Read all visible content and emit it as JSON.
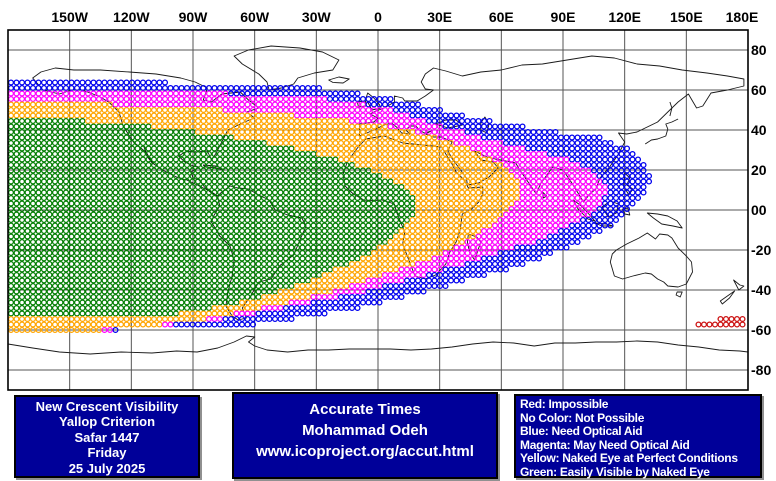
{
  "title": "New Crescent Visibility Map",
  "colors": {
    "panel_bg": "#000099",
    "panel_text": "#ffffff",
    "grid": "#555555",
    "frame": "#000000",
    "coast": "#1a1a1a",
    "zone_blue": "#0000ee",
    "zone_magenta": "#ff00ff",
    "zone_yellow": "#ffa500",
    "zone_green": "#007d00",
    "zone_red": "#cc1111"
  },
  "map": {
    "lon_ticks": [
      {
        "label": "150W",
        "lon": -150
      },
      {
        "label": "120W",
        "lon": -120
      },
      {
        "label": "90W",
        "lon": -90
      },
      {
        "label": "60W",
        "lon": -60
      },
      {
        "label": "30W",
        "lon": -30
      },
      {
        "label": "0",
        "lon": 0
      },
      {
        "label": "30E",
        "lon": 30
      },
      {
        "label": "60E",
        "lon": 60
      },
      {
        "label": "90E",
        "lon": 90
      },
      {
        "label": "120E",
        "lon": 120
      },
      {
        "label": "150E",
        "lon": 150
      },
      {
        "label": "180E",
        "lon": 180
      }
    ],
    "lat_ticks": [
      {
        "label": "80",
        "lat": 80
      },
      {
        "label": "60",
        "lat": 60
      },
      {
        "label": "40",
        "lat": 40
      },
      {
        "label": "20",
        "lat": 20
      },
      {
        "label": "00",
        "lat": 0
      },
      {
        "label": "-20",
        "lat": -20
      },
      {
        "label": "-40",
        "lat": -40
      },
      {
        "label": "-60",
        "lat": -60
      },
      {
        "label": "-80",
        "lat": -80
      }
    ],
    "zone_south_limit_lat": -60,
    "zones": [
      {
        "name": "blue",
        "meaning": "Need Optical Aid",
        "color": "#0000ee",
        "boundary": [
          [
            -180,
            65
          ],
          [
            -87,
            63.5
          ],
          [
            -28,
            61
          ],
          [
            0,
            57
          ],
          [
            20,
            53
          ],
          [
            38,
            48
          ],
          [
            62,
            43
          ],
          [
            89,
            39
          ],
          [
            108,
            37
          ],
          [
            123,
            30
          ],
          [
            131,
            22.5
          ],
          [
            133,
            14
          ],
          [
            127,
            4
          ],
          [
            117,
            -6
          ],
          [
            103,
            -14
          ],
          [
            89,
            -20.5
          ],
          [
            62,
            -30
          ],
          [
            35,
            -37.5
          ],
          [
            11,
            -44
          ],
          [
            -14,
            -50
          ],
          [
            -38,
            -54
          ],
          [
            -62,
            -57.5
          ],
          [
            -87,
            -59
          ],
          [
            -126,
            -60
          ],
          [
            -180,
            -61
          ]
        ]
      },
      {
        "name": "magenta",
        "meaning": "May Need Optical Aid",
        "color": "#ff00ff",
        "boundary": [
          [
            -180,
            61
          ],
          [
            -87,
            59
          ],
          [
            -28,
            56
          ],
          [
            0,
            52
          ],
          [
            20,
            46
          ],
          [
            38,
            40
          ],
          [
            59,
            34
          ],
          [
            79,
            29
          ],
          [
            93,
            25
          ],
          [
            105,
            19
          ],
          [
            111,
            12.5
          ],
          [
            110,
            5
          ],
          [
            103,
            -2.5
          ],
          [
            92,
            -9
          ],
          [
            79,
            -15
          ],
          [
            59,
            -21.5
          ],
          [
            35,
            -29
          ],
          [
            11,
            -36
          ],
          [
            -14,
            -42.5
          ],
          [
            -38,
            -47.5
          ],
          [
            -62,
            -52.5
          ],
          [
            -87,
            -56
          ],
          [
            -111,
            -58.5
          ],
          [
            -135,
            -60.5
          ],
          [
            -180,
            -62
          ]
        ]
      },
      {
        "name": "yellow",
        "meaning": "Naked Eye at Perfect Conditions",
        "color": "#ffa500",
        "boundary": [
          [
            -180,
            55
          ],
          [
            -111,
            52
          ],
          [
            -57,
            49
          ],
          [
            -18,
            45
          ],
          [
            6,
            41.5
          ],
          [
            19,
            39
          ],
          [
            35,
            34
          ],
          [
            49,
            29
          ],
          [
            59,
            23
          ],
          [
            67,
            17
          ],
          [
            70,
            10
          ],
          [
            67,
            2.5
          ],
          [
            58,
            -6
          ],
          [
            45,
            -15
          ],
          [
            30,
            -22.5
          ],
          [
            13,
            -29
          ],
          [
            -4,
            -35
          ],
          [
            -23,
            -41
          ],
          [
            -43,
            -46
          ],
          [
            -62,
            -50.5
          ],
          [
            -87,
            -55
          ],
          [
            -111,
            -58
          ],
          [
            -135,
            -60
          ],
          [
            -180,
            -63.5
          ]
        ]
      },
      {
        "name": "green",
        "meaning": "Easily Visible by Naked Eye",
        "color": "#007d00",
        "boundary": [
          [
            -180,
            46.5
          ],
          [
            -125,
            43.5
          ],
          [
            -77,
            37.5
          ],
          [
            -43,
            31.5
          ],
          [
            -18,
            25
          ],
          [
            -1,
            19
          ],
          [
            11,
            12.5
          ],
          [
            16.5,
            7
          ],
          [
            19,
            1
          ],
          [
            15.5,
            -6
          ],
          [
            8,
            -13.5
          ],
          [
            -3,
            -21
          ],
          [
            -16,
            -27.5
          ],
          [
            -33,
            -35
          ],
          [
            -52,
            -42
          ],
          [
            -72,
            -47.5
          ],
          [
            -94,
            -51.5
          ],
          [
            -116,
            -53.5
          ],
          [
            -140,
            -54
          ],
          [
            -180,
            -54.5
          ]
        ]
      },
      {
        "name": "red",
        "meaning": "Impossible",
        "color": "#cc1111",
        "boundary": [
          [
            154,
            -56
          ],
          [
            165.5,
            -56
          ],
          [
            165.5,
            -53
          ],
          [
            179,
            -53
          ],
          [
            179,
            -59.5
          ],
          [
            154,
            -59.5
          ]
        ]
      }
    ]
  },
  "panels": {
    "info": {
      "lines": [
        "New Crescent Visibility",
        "Yallop Criterion",
        "Safar 1447",
        "Friday",
        "25 July 2025"
      ]
    },
    "credit": {
      "lines": [
        "Accurate Times",
        "Mohammad Odeh",
        "www.icoproject.org/accut.html"
      ]
    },
    "legend": {
      "lines": [
        "Red: Impossible",
        "No Color: Not Possible",
        "Blue: Need Optical Aid",
        "Magenta: May Need Optical Aid",
        "Yellow: Naked Eye at Perfect Conditions",
        "Green: Easily Visible by Naked Eye"
      ]
    }
  }
}
